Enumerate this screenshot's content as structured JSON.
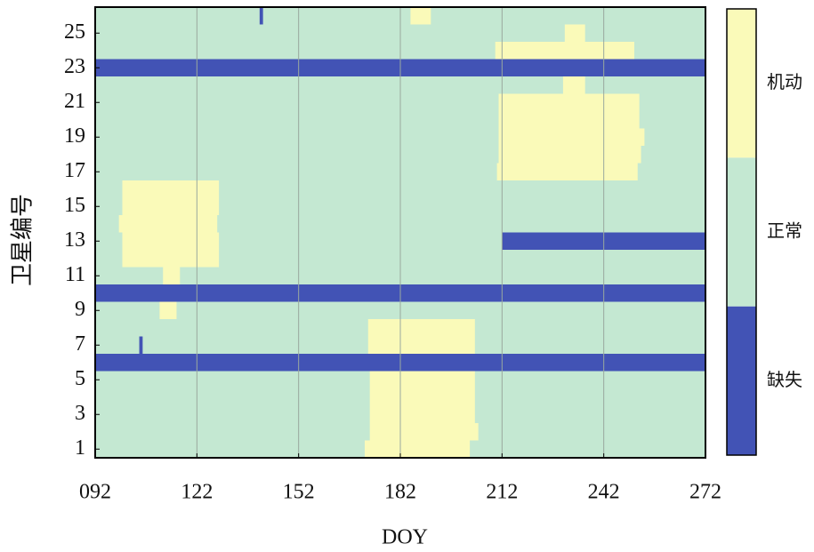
{
  "chart_data": {
    "type": "heatmap",
    "xlabel": "DOY",
    "ylabel": "卫星编号",
    "xlim": [
      92,
      272
    ],
    "xticks": [
      {
        "value": 92,
        "label": "092"
      },
      122,
      152,
      182,
      212,
      242,
      272
    ],
    "ylim": [
      0.5,
      26.5
    ],
    "yticks": [
      1,
      3,
      5,
      7,
      9,
      11,
      13,
      15,
      17,
      19,
      21,
      23,
      25
    ],
    "grid": true,
    "series": [
      {
        "name": "缺失",
        "color": "#4253b5",
        "segments": [
          [
            26,
            140.5,
            141.5
          ],
          [
            23,
            92,
            272
          ],
          [
            13,
            212,
            272
          ],
          [
            10,
            92,
            272
          ],
          [
            7,
            105,
            106
          ],
          [
            6,
            92,
            272
          ]
        ]
      },
      {
        "name": "正常",
        "color": "#c4e8d2"
      },
      {
        "name": "机动",
        "color": "#fafab9",
        "segments": [
          [
            26,
            185,
            191
          ],
          [
            25,
            230.5,
            236.5
          ],
          [
            24,
            210,
            251
          ],
          [
            22,
            230,
            236.5
          ],
          [
            21,
            211,
            252.5
          ],
          [
            20,
            211,
            252.5
          ],
          [
            19,
            211,
            254
          ],
          [
            18,
            211,
            253
          ],
          [
            17,
            210.5,
            252
          ],
          [
            16,
            100,
            128.5
          ],
          [
            15,
            100,
            128.5
          ],
          [
            14,
            99,
            128
          ],
          [
            13,
            100,
            128.5
          ],
          [
            12,
            100,
            128.5
          ],
          [
            11,
            112,
            117
          ],
          [
            9,
            111,
            116
          ],
          [
            8,
            172.5,
            204
          ],
          [
            7,
            172.5,
            204
          ],
          [
            5,
            173,
            204
          ],
          [
            4,
            173,
            204
          ],
          [
            3,
            173,
            204
          ],
          [
            2,
            173,
            205
          ],
          [
            1,
            171.5,
            202.5
          ]
        ]
      }
    ]
  }
}
